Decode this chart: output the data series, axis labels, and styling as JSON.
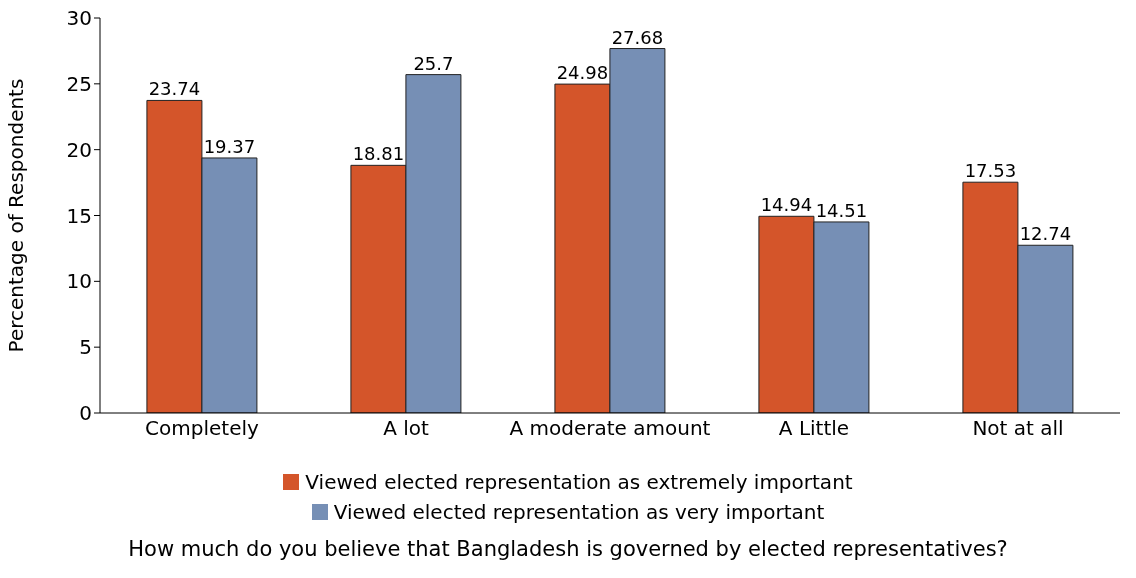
{
  "chart_data": {
    "type": "bar",
    "xlabel": "How much do you believe that Bangladesh is governed by elected representatives?",
    "ylabel": "Percentage of Respondents",
    "categories": [
      "Completely",
      "A lot",
      "A moderate amount",
      "A Little",
      "Not at all"
    ],
    "series": [
      {
        "name": "Viewed elected representation as extremely important",
        "color": "#d4552a",
        "values": [
          23.74,
          18.81,
          24.98,
          14.94,
          17.53
        ]
      },
      {
        "name": "Viewed elected representation as very important",
        "color": "#768fb5",
        "values": [
          19.37,
          25.7,
          27.68,
          14.51,
          12.74
        ]
      }
    ],
    "ylim": [
      0,
      30
    ],
    "yticks": [
      0,
      5,
      10,
      15,
      20,
      25,
      30
    ],
    "grid": false,
    "legend": "bottom",
    "data_labels": true
  }
}
